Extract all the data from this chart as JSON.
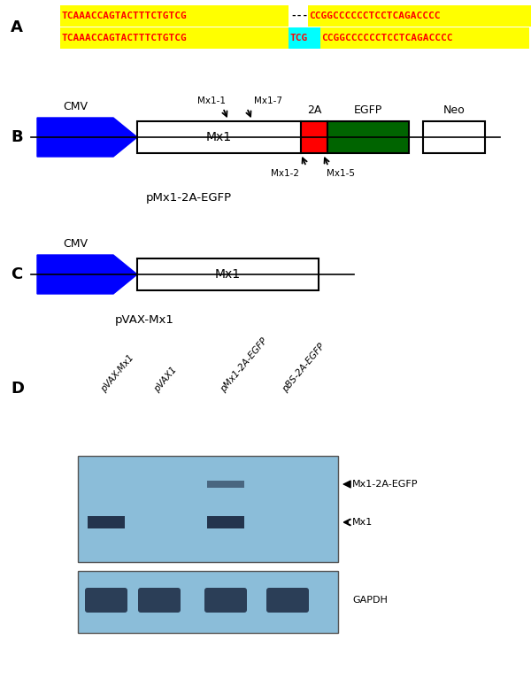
{
  "panel_A": {
    "line1_left": "TCAAACCAGTACTTTCTGTCG",
    "line1_gap": "---",
    "line1_right": "CCGGCCCCCCTCCTCAGACCCC",
    "line2_left": "TCAAACCAGTACTTTCTGTCG",
    "line2_highlight": "TCG",
    "line2_right": "CCGGCCCCCCTCCTCAGACCCC",
    "bg_color": "#FFFF00",
    "text_color": "#FF0000",
    "highlight_color": "#00FFFF"
  },
  "panel_B": {
    "cmv_label": "CMV",
    "mx1_label": "Mx1",
    "twoA_label": "2A",
    "egfp_label": "EGFP",
    "neo_label": "Neo",
    "primer_top_left": "Mx1-1",
    "primer_top_right": "Mx1-7",
    "primer_bot_left": "Mx1-2",
    "primer_bot_right": "Mx1-5",
    "construct_label": "pMx1-2A-EGFP",
    "blue_color": "#0000FF",
    "red_color": "#FF0000",
    "green_color": "#006400"
  },
  "panel_C": {
    "cmv_label": "CMV",
    "mx1_label": "Mx1",
    "construct_label": "pVAX-Mx1",
    "blue_color": "#0000FF"
  },
  "panel_D": {
    "lane_labels": [
      "pVAX-Mx1",
      "pVAX1",
      "pMx1-2A-EGFP",
      "pBS-2A-EGFP"
    ],
    "band1_label": "Mx1-2A-EGFP",
    "band2_label": "Mx1",
    "band3_label": "GAPDH",
    "blot_bg1": "#7AABCF",
    "blot_bg2": "#8AB8D8",
    "band_dark": "#1E2D45"
  }
}
